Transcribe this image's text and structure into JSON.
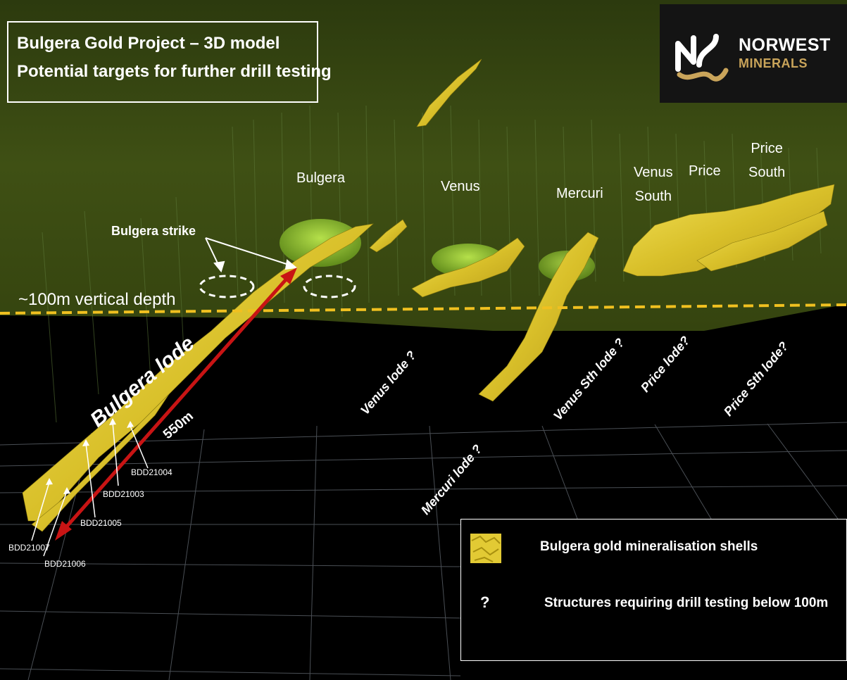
{
  "title": {
    "line1": "Bulgera Gold Project – 3D model",
    "line2": "Potential targets for further drill testing"
  },
  "logo": {
    "line1": "NORWEST",
    "line2": "MINERALS"
  },
  "deposits": {
    "bulgera": "Bulgera",
    "venus": "Venus",
    "mercuri": "Mercuri",
    "venus_south_1": "Venus",
    "venus_south_2": "South",
    "price": "Price",
    "price_south_1": "Price",
    "price_south_2": "South"
  },
  "annotations": {
    "bulgera_strike": "Bulgera strike",
    "depth": "~100m vertical depth",
    "bulgera_lode": "Bulgera lode",
    "length": "550m"
  },
  "target_lodes": {
    "venus": "Venus lode ?",
    "mercuri": "Mercuri lode ?",
    "venus_sth": "Venus Sth lode ?",
    "price": "Price lode?",
    "price_sth": "Price Sth lode?"
  },
  "drill_holes": [
    "BDD21004",
    "BDD21003",
    "BDD21005",
    "BDD21007",
    "BDD21006"
  ],
  "legend": {
    "shells": "Bulgera gold mineralisation shells",
    "question_symbol": "?",
    "structures": "Structures requiring drill testing below 100m"
  },
  "colors": {
    "surface": "#3a4a12",
    "mineralisation": "#e8d23a",
    "depth_line": "#f0c020",
    "lode_arrow": "#c81414",
    "logo_accent": "#c9a45a"
  }
}
